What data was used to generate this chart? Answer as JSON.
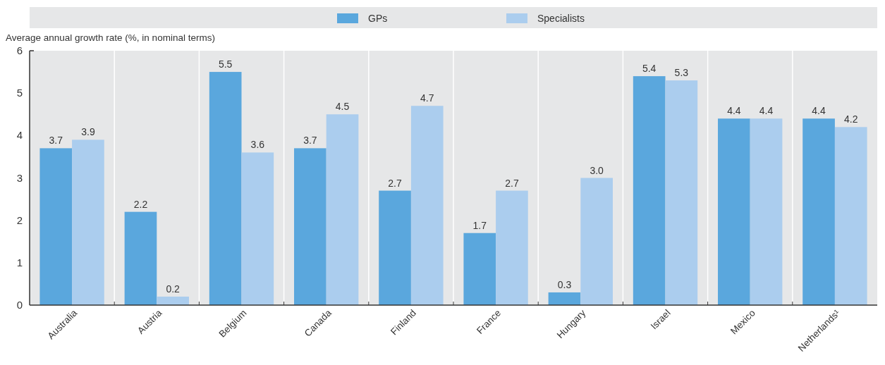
{
  "chart_data": {
    "type": "bar",
    "ylabel": "Average annual growth rate (%, in nominal terms)",
    "categories": [
      "Australia",
      "Austria",
      "Belgium",
      "Canada",
      "Finland",
      "France",
      "Hungary",
      "Israel",
      "Mexico",
      "Netherlands¹"
    ],
    "series": [
      {
        "name": "GPs",
        "color": "#5aa7dd",
        "values": [
          3.7,
          2.2,
          5.5,
          3.7,
          2.7,
          1.7,
          0.3,
          5.4,
          4.4,
          4.4
        ],
        "value_labels": [
          "3.7",
          "2.2",
          "5.5",
          "3.7",
          "2.7",
          "1.7",
          "0.3",
          "5.4",
          "4.4",
          "4.4"
        ]
      },
      {
        "name": "Specialists",
        "color": "#abcdee",
        "values": [
          3.9,
          0.2,
          3.6,
          4.5,
          4.7,
          2.7,
          3.0,
          5.3,
          4.4,
          4.2
        ],
        "value_labels": [
          "3.9",
          "0.2",
          "3.6",
          "4.5",
          "4.7",
          "2.7",
          "3.0",
          "5.3",
          "4.4",
          "4.2"
        ]
      }
    ],
    "ylim": [
      0,
      6
    ],
    "yticks": [
      0,
      1,
      2,
      3,
      4,
      5,
      6
    ],
    "legend": "top",
    "grid": false
  }
}
